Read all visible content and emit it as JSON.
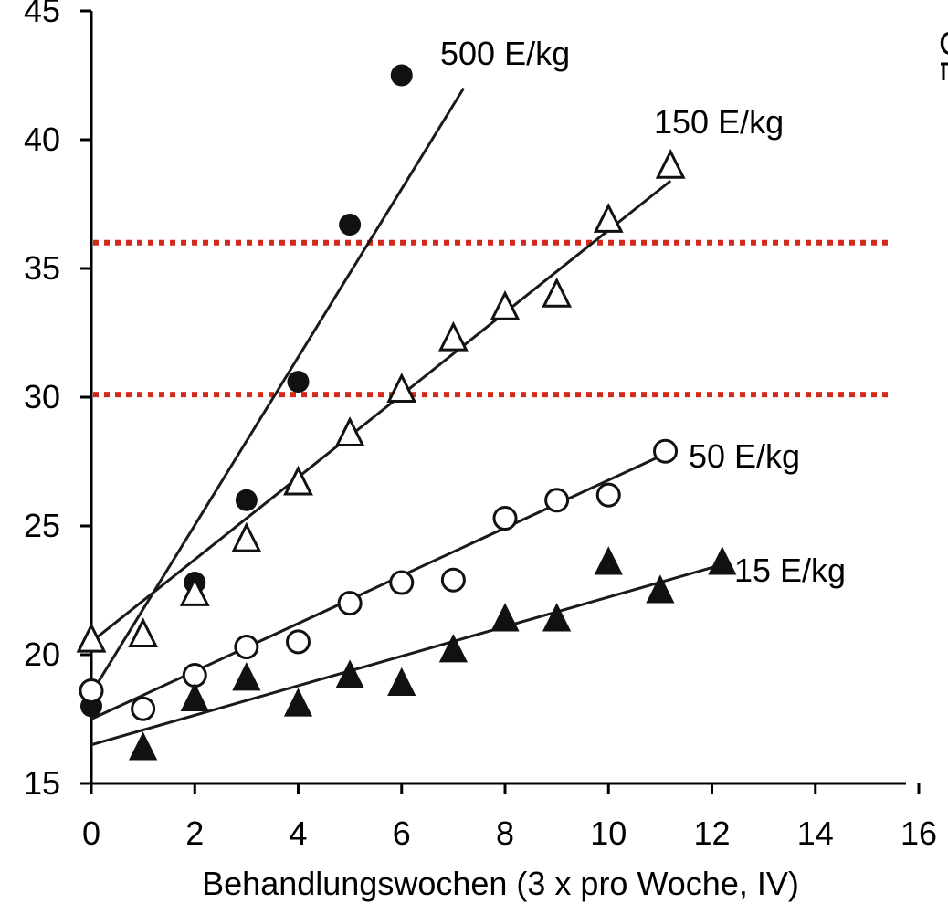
{
  "chart_data": {
    "type": "scatter",
    "title": "",
    "xlabel": "Behandlungswochen (3 x pro Woche, IV)",
    "ylabel": "",
    "xlim": [
      0,
      16
    ],
    "ylim": [
      15,
      45
    ],
    "x_ticks": [
      0,
      2,
      4,
      6,
      8,
      10,
      12,
      14,
      16
    ],
    "y_ticks": [
      15,
      20,
      25,
      30,
      35,
      40,
      45
    ],
    "grid": false,
    "legend": "none",
    "reference_lines": [
      {
        "y": 36.0,
        "style": "dotted",
        "color": "#d42a1c"
      },
      {
        "y": 30.1,
        "style": "dotted",
        "color": "#d42a1c"
      }
    ],
    "corner_text": "G",
    "series": [
      {
        "name": "500 E/kg",
        "marker": "filled-circle",
        "x": [
          0,
          2,
          3,
          4,
          5,
          6
        ],
        "y": [
          18.0,
          22.8,
          26.0,
          30.6,
          36.7,
          42.5
        ],
        "fit": {
          "x": [
            0,
            7.2
          ],
          "y": [
            18.5,
            42.0
          ]
        }
      },
      {
        "name": "150 E/kg",
        "marker": "open-triangle",
        "x": [
          0,
          1,
          2,
          3,
          4,
          5,
          6,
          7,
          8,
          9,
          10,
          11.2
        ],
        "y": [
          20.6,
          20.8,
          22.4,
          24.5,
          26.7,
          28.6,
          30.3,
          32.3,
          33.5,
          34.0,
          36.9,
          39.0
        ],
        "fit": {
          "x": [
            0,
            11.2
          ],
          "y": [
            20.5,
            38.4
          ]
        }
      },
      {
        "name": "50 E/kg",
        "marker": "open-circle",
        "x": [
          0,
          1,
          2,
          3,
          4,
          5,
          6,
          7,
          8,
          9,
          10,
          11.1
        ],
        "y": [
          18.6,
          17.9,
          19.2,
          20.3,
          20.5,
          22.0,
          22.8,
          22.9,
          25.3,
          26.0,
          26.2,
          27.9
        ],
        "fit": {
          "x": [
            0,
            11.1
          ],
          "y": [
            17.5,
            27.8
          ]
        }
      },
      {
        "name": "15 E/kg",
        "marker": "filled-triangle",
        "x": [
          1,
          2,
          3,
          4,
          5,
          6,
          7,
          8,
          9,
          10,
          11,
          12.2
        ],
        "y": [
          16.4,
          18.3,
          19.1,
          18.1,
          19.2,
          18.9,
          20.2,
          21.4,
          21.4,
          23.6,
          22.5,
          23.6
        ],
        "fit": {
          "x": [
            0,
            12.2
          ],
          "y": [
            16.5,
            23.5
          ]
        }
      }
    ]
  }
}
